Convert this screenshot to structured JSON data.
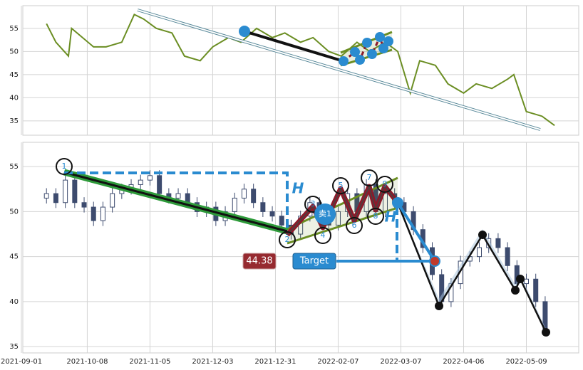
{
  "chart_data": [
    {
      "type": "line",
      "x": [
        8,
        11,
        15,
        16,
        23,
        27,
        32,
        36,
        39,
        43,
        48,
        52,
        57,
        61,
        66,
        70,
        75,
        80,
        84,
        89,
        93,
        98,
        102,
        107,
        111,
        116,
        120,
        124,
        127,
        132,
        136,
        141,
        145,
        150,
        155,
        157,
        161,
        166,
        170
      ],
      "series": [
        {
          "color": "#6b8e23",
          "values": [
            56,
            52,
            49,
            55,
            51,
            51,
            52,
            58,
            57,
            55,
            54,
            49,
            48,
            51,
            53,
            52,
            55,
            53,
            54,
            52,
            53,
            50,
            49,
            52,
            50,
            52,
            50,
            41,
            48,
            47,
            43,
            41,
            43,
            42,
            44,
            45,
            37,
            36,
            34
          ]
        }
      ],
      "xlim": [
        0.45,
        177.7
      ],
      "ylim": [
        31.9,
        59.9
      ],
      "yticks": [
        35,
        40,
        45,
        50,
        55
      ],
      "grid": true
    },
    {
      "type": "candlestick",
      "x": [
        8,
        11,
        14,
        17,
        20,
        23,
        26,
        29,
        32,
        35,
        38,
        41,
        44,
        47,
        50,
        53,
        56,
        59,
        62,
        65,
        68,
        71,
        74,
        77,
        80,
        83,
        86,
        89,
        92,
        95,
        98,
        101,
        104,
        107,
        110,
        113,
        116,
        119,
        122,
        125,
        128,
        131,
        134,
        137,
        140,
        143,
        146,
        149,
        152,
        155,
        158,
        161,
        164,
        167
      ],
      "open": [
        51.5,
        52,
        51,
        53.5,
        51,
        50.5,
        49,
        50.5,
        52,
        52.5,
        53,
        53.5,
        54,
        52,
        51.5,
        52,
        51,
        50,
        50.5,
        49,
        50,
        51.5,
        52.5,
        51,
        50,
        49.5,
        48.5,
        47.5,
        49.5,
        51,
        49.5,
        48.5,
        50,
        52,
        50,
        53,
        50,
        52,
        51,
        50,
        48,
        46,
        43,
        40,
        42,
        44.5,
        45,
        46,
        47,
        46,
        44,
        42,
        42.5,
        40
      ],
      "high": [
        52.6,
        52.6,
        54.1,
        54.1,
        51.6,
        51.1,
        51.1,
        52.6,
        53.1,
        53.6,
        54.1,
        54.6,
        54.6,
        52.6,
        52.6,
        52.6,
        51.6,
        51.1,
        51.1,
        50.6,
        52.1,
        53.1,
        53.1,
        51.6,
        50.6,
        50.1,
        49.1,
        50.1,
        51.6,
        51.6,
        50.1,
        50.6,
        52.6,
        52.6,
        53.6,
        53.6,
        52.6,
        52.6,
        51.6,
        50.6,
        48.6,
        46.6,
        43.6,
        42.6,
        45.1,
        45.6,
        46.6,
        47.6,
        47.6,
        46.6,
        44.6,
        43.1,
        43.1,
        40.6
      ],
      "low": [
        50.9,
        50.4,
        50.4,
        50.4,
        49.9,
        48.4,
        48.4,
        49.9,
        51.4,
        51.9,
        52.4,
        52.9,
        51.4,
        50.9,
        50.9,
        50.4,
        49.4,
        49.4,
        48.4,
        48.4,
        49.4,
        50.9,
        50.4,
        49.4,
        48.9,
        47.9,
        46.9,
        46.9,
        48.9,
        48.9,
        47.9,
        47.9,
        49.4,
        49.4,
        49.4,
        49.4,
        49.4,
        50.4,
        49.4,
        47.4,
        45.4,
        42.4,
        39.4,
        39.4,
        41.4,
        43.9,
        44.4,
        45.4,
        45.4,
        43.4,
        41.4,
        41.4,
        39.4,
        36.4
      ],
      "close": [
        52,
        51,
        53.5,
        51,
        50.5,
        49,
        50.5,
        52,
        52.5,
        53,
        53.5,
        54,
        52,
        51.5,
        52,
        51,
        50,
        50.5,
        49,
        50,
        51.5,
        52.5,
        51,
        50,
        49.5,
        48.5,
        47.5,
        49.5,
        51,
        49.5,
        48.5,
        50,
        52,
        50,
        53,
        50,
        52,
        51,
        50,
        48,
        46,
        43,
        40,
        42,
        44.5,
        45,
        46,
        47,
        46,
        44,
        42,
        42.5,
        40,
        37
      ],
      "up_color": "#ffffff",
      "down_color": "#3d4b6e",
      "xlim": [
        0.45,
        177.7
      ],
      "ylim": [
        34.3,
        57.7
      ],
      "yticks": [
        35,
        40,
        45,
        50,
        55
      ],
      "xticks": [
        {
          "value": 0,
          "label": "2021-09-01"
        },
        {
          "value": 21,
          "label": "2021-10-08"
        },
        {
          "value": 41,
          "label": "2021-11-05"
        },
        {
          "value": 61,
          "label": "2021-12-03"
        },
        {
          "value": 81,
          "label": "2021-12-31"
        },
        {
          "value": 101,
          "label": "2022-02-07"
        },
        {
          "value": 121,
          "label": "2022-03-07"
        },
        {
          "value": 141,
          "label": "2022-04-06"
        },
        {
          "value": 161,
          "label": "2022-05-09"
        }
      ],
      "grid": true
    }
  ],
  "annotations": {
    "points": [
      "1",
      "2",
      "3",
      "4",
      "5",
      "6",
      "7",
      "8",
      "9"
    ],
    "height": "H",
    "sell": "卖1",
    "price": "44.38",
    "target": "Target"
  }
}
